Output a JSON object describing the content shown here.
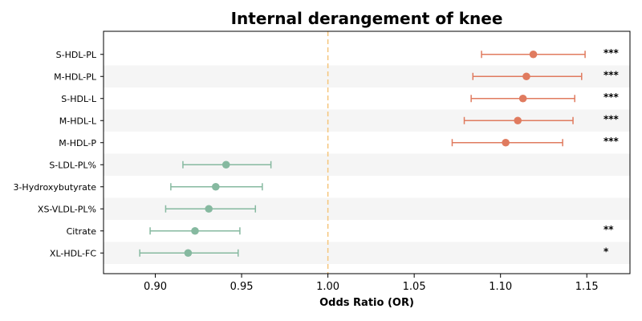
{
  "chart_data": {
    "type": "forest",
    "title": "Internal derangement of knee",
    "xlabel": "Odds Ratio (OR)",
    "xlim": [
      0.87,
      1.175
    ],
    "xticks": [
      "0.90",
      "0.95",
      "1.00",
      "1.05",
      "1.10",
      "1.15"
    ],
    "reference_line": 1.0,
    "colors": {
      "positive": "#e07b5f",
      "negative": "#86b9a0",
      "reference": "#f5c57a",
      "stripe": "#f5f5f5"
    },
    "rows": [
      {
        "label": "S-HDL-PL",
        "or": 1.119,
        "lo": 1.089,
        "hi": 1.149,
        "sig": "***"
      },
      {
        "label": "M-HDL-PL",
        "or": 1.115,
        "lo": 1.084,
        "hi": 1.147,
        "sig": "***"
      },
      {
        "label": "S-HDL-L",
        "or": 1.113,
        "lo": 1.083,
        "hi": 1.143,
        "sig": "***"
      },
      {
        "label": "M-HDL-L",
        "or": 1.11,
        "lo": 1.079,
        "hi": 1.142,
        "sig": "***"
      },
      {
        "label": "M-HDL-P",
        "or": 1.103,
        "lo": 1.072,
        "hi": 1.136,
        "sig": "***"
      },
      {
        "label": "S-LDL-PL%",
        "or": 0.941,
        "lo": 0.916,
        "hi": 0.967,
        "sig": ""
      },
      {
        "label": "3-Hydroxybutyrate",
        "or": 0.935,
        "lo": 0.909,
        "hi": 0.962,
        "sig": ""
      },
      {
        "label": "XS-VLDL-PL%",
        "or": 0.931,
        "lo": 0.906,
        "hi": 0.958,
        "sig": ""
      },
      {
        "label": "Citrate",
        "or": 0.923,
        "lo": 0.897,
        "hi": 0.949,
        "sig": "**"
      },
      {
        "label": "XL-HDL-FC",
        "or": 0.919,
        "lo": 0.891,
        "hi": 0.948,
        "sig": "*"
      }
    ]
  }
}
